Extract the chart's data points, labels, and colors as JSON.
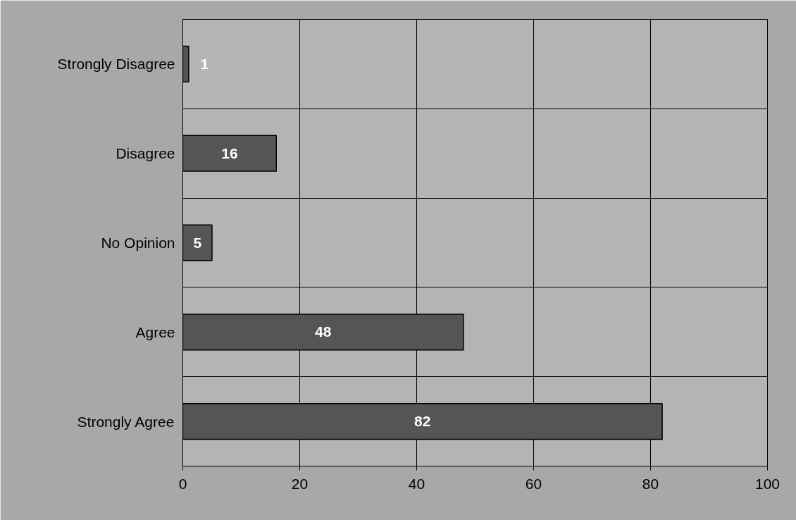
{
  "chart_data": {
    "type": "bar",
    "orientation": "horizontal",
    "categories": [
      "Strongly Disagree",
      "Disagree",
      "No Opinion",
      "Agree",
      "Strongly Agree"
    ],
    "values": [
      1,
      16,
      5,
      48,
      82
    ],
    "color": "#555555",
    "xlim": [
      0,
      100
    ],
    "xticks": [
      0,
      20,
      40,
      60,
      80,
      100
    ],
    "grid": true,
    "data_labels": true
  }
}
